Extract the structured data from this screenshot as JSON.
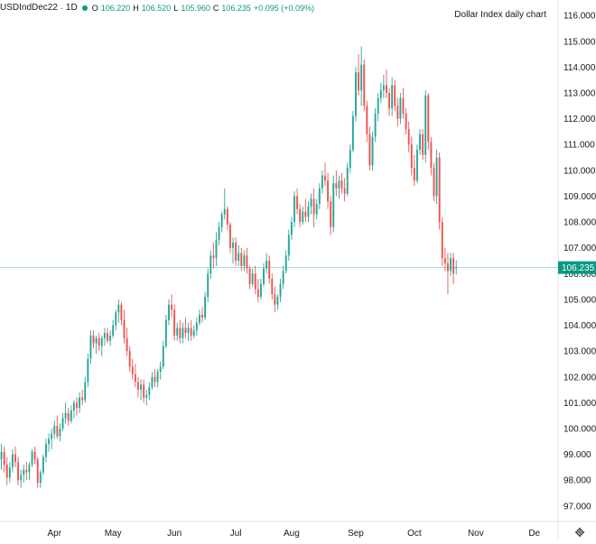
{
  "legend": {
    "symbol": "USDIndDec22",
    "interval": "1D",
    "open_label": "O",
    "open": "106.220",
    "high_label": "H",
    "high": "106.520",
    "low_label": "L",
    "low": "105.960",
    "close_label": "C",
    "close": "106.235",
    "change": "+0.095 (+0.09%)"
  },
  "annotation": "Dollar Index daily chart",
  "colors": {
    "up": "#26a69a",
    "down": "#ef5350",
    "price_line": "#26a69a",
    "price_tag_bg": "#089981",
    "axis_text": "#131722",
    "axis_border": "#e0e3eb"
  },
  "settings_icon": "gear-icon",
  "chart_data": {
    "type": "candlestick",
    "title": "Dollar Index daily chart",
    "symbol": "USDIndDec22",
    "interval": "1D",
    "ylim": [
      96.4,
      116.6
    ],
    "y_ticks": [
      "116.000",
      "115.000",
      "114.000",
      "113.000",
      "112.000",
      "111.000",
      "110.000",
      "109.000",
      "108.000",
      "107.000",
      "106.000",
      "105.000",
      "104.000",
      "103.000",
      "102.000",
      "101.000",
      "100.000",
      "99.000",
      "98.000",
      "97.000"
    ],
    "x_labels": [
      {
        "label": "Apr",
        "day_index": 19
      },
      {
        "label": "May",
        "day_index": 40
      },
      {
        "label": "Jun",
        "day_index": 62
      },
      {
        "label": "Jul",
        "day_index": 84
      },
      {
        "label": "Aug",
        "day_index": 104
      },
      {
        "label": "Sep",
        "day_index": 127
      },
      {
        "label": "Oct",
        "day_index": 148
      },
      {
        "label": "Nov",
        "day_index": 170
      },
      {
        "label": "De",
        "day_index": 191
      }
    ],
    "last_price": 106.235,
    "last_price_label": "106.235",
    "total_slots": 200,
    "ohlc": [
      [
        98.8,
        99.4,
        98.4,
        99.1
      ],
      [
        99.1,
        99.3,
        98.3,
        98.6
      ],
      [
        98.6,
        98.9,
        97.8,
        98.1
      ],
      [
        98.1,
        98.7,
        97.9,
        98.5
      ],
      [
        98.5,
        99.2,
        98.3,
        99.0
      ],
      [
        99.0,
        99.3,
        98.5,
        98.7
      ],
      [
        98.7,
        98.9,
        97.8,
        98.0
      ],
      [
        98.0,
        98.4,
        97.7,
        98.2
      ],
      [
        98.2,
        98.6,
        97.9,
        98.4
      ],
      [
        98.4,
        98.7,
        98.0,
        98.3
      ],
      [
        98.3,
        98.7,
        98.0,
        98.6
      ],
      [
        98.6,
        99.2,
        98.5,
        99.1
      ],
      [
        99.1,
        99.3,
        98.6,
        98.8
      ],
      [
        98.8,
        98.9,
        97.7,
        97.9
      ],
      [
        97.9,
        98.4,
        97.7,
        98.3
      ],
      [
        98.3,
        99.0,
        98.2,
        98.9
      ],
      [
        98.9,
        99.6,
        98.7,
        99.4
      ],
      [
        99.4,
        99.8,
        99.1,
        99.6
      ],
      [
        99.6,
        100.0,
        99.2,
        99.8
      ],
      [
        99.8,
        100.3,
        99.6,
        100.1
      ],
      [
        100.1,
        100.5,
        99.6,
        99.7
      ],
      [
        99.7,
        100.2,
        99.5,
        100.0
      ],
      [
        100.0,
        100.6,
        99.9,
        100.4
      ],
      [
        100.4,
        101.0,
        100.2,
        100.6
      ],
      [
        100.6,
        100.8,
        100.1,
        100.3
      ],
      [
        100.3,
        100.9,
        100.2,
        100.7
      ],
      [
        100.7,
        101.1,
        100.4,
        101.0
      ],
      [
        101.0,
        101.2,
        100.5,
        100.8
      ],
      [
        100.8,
        101.4,
        100.6,
        101.2
      ],
      [
        101.2,
        101.5,
        100.9,
        101.1
      ],
      [
        101.1,
        102.0,
        101.0,
        101.8
      ],
      [
        101.8,
        102.9,
        101.6,
        102.7
      ],
      [
        102.7,
        103.8,
        102.5,
        103.6
      ],
      [
        103.6,
        103.8,
        103.1,
        103.3
      ],
      [
        103.3,
        103.6,
        102.9,
        103.5
      ],
      [
        103.5,
        103.7,
        103.0,
        103.2
      ],
      [
        103.2,
        103.6,
        102.8,
        103.5
      ],
      [
        103.5,
        103.9,
        103.2,
        103.7
      ],
      [
        103.7,
        103.9,
        103.3,
        103.4
      ],
      [
        103.4,
        103.8,
        103.2,
        103.6
      ],
      [
        103.6,
        104.2,
        103.5,
        104.0
      ],
      [
        104.0,
        104.6,
        103.8,
        104.5
      ],
      [
        104.5,
        105.0,
        104.1,
        104.8
      ],
      [
        104.8,
        104.9,
        104.0,
        104.2
      ],
      [
        104.2,
        104.6,
        103.3,
        103.5
      ],
      [
        103.5,
        103.9,
        102.8,
        103.0
      ],
      [
        103.0,
        103.2,
        102.2,
        102.4
      ],
      [
        102.4,
        102.7,
        101.9,
        102.1
      ],
      [
        102.1,
        102.5,
        101.6,
        101.8
      ],
      [
        101.8,
        102.0,
        101.2,
        101.5
      ],
      [
        101.5,
        101.9,
        101.1,
        101.7
      ],
      [
        101.7,
        101.9,
        101.0,
        101.2
      ],
      [
        101.2,
        101.5,
        100.9,
        101.3
      ],
      [
        101.3,
        101.8,
        101.1,
        101.6
      ],
      [
        101.6,
        102.2,
        101.5,
        102.0
      ],
      [
        102.0,
        102.3,
        101.6,
        101.8
      ],
      [
        101.8,
        102.3,
        101.6,
        102.2
      ],
      [
        102.2,
        102.6,
        101.9,
        102.4
      ],
      [
        102.4,
        103.4,
        102.3,
        103.2
      ],
      [
        103.2,
        104.4,
        103.1,
        104.2
      ],
      [
        104.2,
        105.0,
        104.0,
        104.8
      ],
      [
        104.8,
        105.2,
        104.3,
        104.6
      ],
      [
        104.6,
        104.8,
        103.4,
        103.6
      ],
      [
        103.6,
        104.1,
        103.4,
        103.9
      ],
      [
        103.9,
        104.2,
        103.3,
        103.5
      ],
      [
        103.5,
        104.1,
        103.3,
        103.9
      ],
      [
        103.9,
        104.3,
        103.5,
        103.7
      ],
      [
        103.7,
        104.1,
        103.4,
        103.9
      ],
      [
        103.9,
        104.2,
        103.4,
        103.6
      ],
      [
        103.6,
        104.0,
        103.5,
        103.8
      ],
      [
        103.8,
        104.3,
        103.6,
        104.1
      ],
      [
        104.1,
        104.6,
        104.0,
        104.4
      ],
      [
        104.4,
        104.7,
        104.1,
        104.3
      ],
      [
        104.3,
        105.3,
        104.2,
        105.1
      ],
      [
        105.1,
        106.2,
        104.9,
        106.0
      ],
      [
        106.0,
        106.9,
        105.8,
        106.7
      ],
      [
        106.7,
        107.2,
        106.2,
        106.6
      ],
      [
        106.6,
        107.6,
        106.3,
        107.3
      ],
      [
        107.3,
        108.0,
        107.1,
        107.8
      ],
      [
        107.8,
        108.4,
        107.6,
        108.3
      ],
      [
        108.3,
        109.3,
        108.1,
        108.5
      ],
      [
        108.5,
        108.6,
        107.7,
        107.9
      ],
      [
        107.9,
        108.0,
        106.8,
        107.0
      ],
      [
        107.0,
        107.4,
        106.4,
        107.2
      ],
      [
        107.2,
        107.4,
        106.3,
        106.5
      ],
      [
        106.5,
        107.1,
        106.3,
        106.8
      ],
      [
        106.8,
        107.0,
        106.1,
        106.3
      ],
      [
        106.3,
        106.9,
        106.1,
        106.7
      ],
      [
        106.7,
        107.0,
        106.0,
        106.2
      ],
      [
        106.2,
        106.3,
        105.4,
        105.6
      ],
      [
        105.6,
        106.2,
        105.5,
        106.0
      ],
      [
        106.0,
        106.3,
        105.2,
        105.4
      ],
      [
        105.4,
        105.8,
        104.9,
        105.1
      ],
      [
        105.1,
        105.8,
        105.0,
        105.6
      ],
      [
        105.6,
        106.4,
        105.5,
        106.2
      ],
      [
        106.2,
        106.8,
        106.0,
        106.5
      ],
      [
        106.5,
        106.7,
        105.6,
        105.8
      ],
      [
        105.8,
        106.0,
        105.0,
        105.2
      ],
      [
        105.2,
        105.5,
        104.5,
        104.8
      ],
      [
        104.8,
        105.2,
        104.6,
        105.1
      ],
      [
        105.1,
        105.8,
        104.9,
        105.6
      ],
      [
        105.6,
        106.3,
        105.4,
        106.1
      ],
      [
        106.1,
        106.9,
        106.0,
        106.7
      ],
      [
        106.7,
        107.7,
        106.5,
        107.5
      ],
      [
        107.5,
        108.2,
        107.3,
        108.0
      ],
      [
        108.0,
        109.2,
        107.8,
        109.0
      ],
      [
        109.0,
        109.3,
        108.3,
        108.5
      ],
      [
        108.5,
        108.7,
        107.8,
        108.0
      ],
      [
        108.0,
        108.6,
        107.9,
        108.4
      ],
      [
        108.4,
        108.9,
        108.0,
        108.2
      ],
      [
        108.2,
        108.8,
        108.0,
        108.6
      ],
      [
        108.6,
        109.1,
        108.3,
        108.9
      ],
      [
        108.9,
        109.3,
        107.8,
        108.3
      ],
      [
        108.3,
        108.9,
        108.1,
        108.7
      ],
      [
        108.7,
        109.5,
        108.5,
        109.3
      ],
      [
        109.3,
        110.0,
        109.1,
        109.8
      ],
      [
        109.8,
        110.3,
        109.4,
        109.6
      ],
      [
        109.6,
        109.9,
        108.5,
        108.8
      ],
      [
        108.8,
        109.0,
        107.5,
        107.8
      ],
      [
        107.8,
        109.8,
        107.6,
        109.5
      ],
      [
        109.5,
        110.0,
        109.0,
        109.3
      ],
      [
        109.3,
        109.8,
        108.9,
        109.6
      ],
      [
        109.6,
        109.9,
        109.1,
        109.3
      ],
      [
        109.3,
        109.7,
        108.8,
        109.1
      ],
      [
        109.1,
        110.3,
        109.0,
        110.1
      ],
      [
        110.1,
        111.0,
        109.9,
        110.8
      ],
      [
        110.8,
        112.3,
        110.7,
        112.1
      ],
      [
        112.1,
        114.0,
        111.9,
        113.8
      ],
      [
        113.8,
        114.5,
        112.9,
        113.1
      ],
      [
        113.1,
        114.8,
        112.5,
        114.1
      ],
      [
        114.1,
        114.3,
        112.3,
        112.5
      ],
      [
        112.5,
        112.7,
        111.1,
        111.4
      ],
      [
        111.4,
        111.7,
        110.0,
        110.2
      ],
      [
        110.2,
        111.5,
        110.0,
        111.3
      ],
      [
        111.3,
        112.4,
        111.1,
        112.2
      ],
      [
        112.2,
        113.0,
        111.9,
        112.8
      ],
      [
        112.8,
        113.4,
        112.6,
        113.1
      ],
      [
        113.1,
        113.7,
        112.8,
        113.3
      ],
      [
        113.3,
        113.9,
        112.8,
        113.0
      ],
      [
        113.0,
        113.2,
        112.1,
        112.4
      ],
      [
        112.4,
        113.6,
        112.1,
        113.3
      ],
      [
        113.3,
        113.5,
        112.3,
        112.5
      ],
      [
        112.5,
        112.8,
        111.7,
        112.0
      ],
      [
        112.0,
        113.0,
        111.8,
        112.8
      ],
      [
        112.8,
        113.2,
        112.0,
        112.2
      ],
      [
        112.2,
        112.4,
        111.4,
        111.6
      ],
      [
        111.6,
        111.9,
        110.7,
        111.0
      ],
      [
        111.0,
        111.3,
        109.8,
        110.1
      ],
      [
        110.1,
        110.6,
        109.4,
        109.6
      ],
      [
        109.6,
        111.0,
        109.5,
        110.8
      ],
      [
        110.8,
        111.6,
        110.6,
        111.4
      ],
      [
        111.4,
        111.6,
        110.4,
        110.6
      ],
      [
        110.6,
        113.1,
        110.3,
        112.9
      ],
      [
        112.9,
        113.0,
        110.8,
        111.1
      ],
      [
        111.1,
        111.3,
        109.8,
        110.1
      ],
      [
        110.1,
        110.3,
        108.8,
        109.0
      ],
      [
        109.0,
        110.8,
        108.7,
        110.5
      ],
      [
        110.5,
        110.7,
        107.7,
        108.0
      ],
      [
        108.0,
        108.2,
        106.3,
        106.6
      ],
      [
        106.6,
        107.0,
        106.1,
        106.4
      ],
      [
        106.4,
        106.8,
        105.2,
        106.1
      ],
      [
        106.1,
        106.8,
        105.9,
        106.6
      ],
      [
        106.6,
        106.8,
        105.6,
        106.0
      ],
      [
        106.22,
        106.52,
        105.96,
        106.235
      ]
    ]
  }
}
